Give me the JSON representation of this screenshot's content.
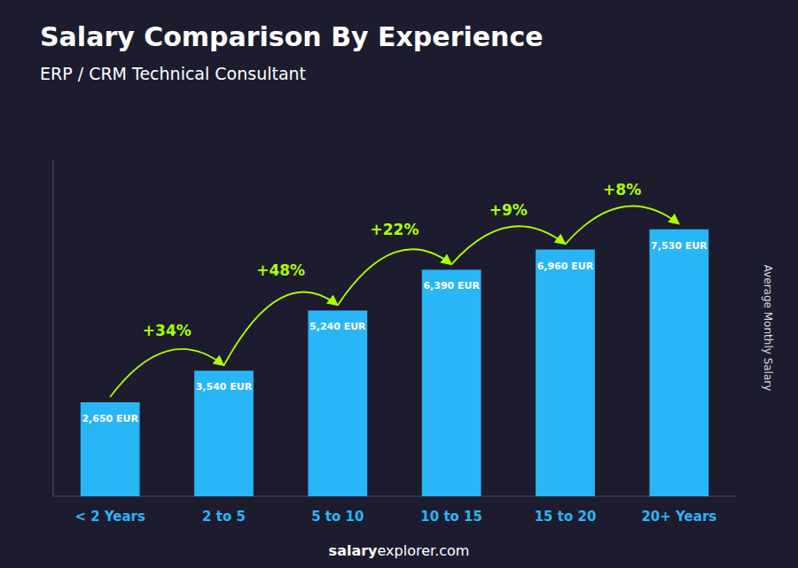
{
  "chart_data": {
    "type": "bar",
    "title": "Salary Comparison By Experience",
    "subtitle": "ERP / CRM Technical Consultant",
    "ylabel": "Average Monthly Salary",
    "footer": [
      "salary",
      "explorer.com"
    ],
    "categories": [
      "< 2 Years",
      "2 to 5",
      "5 to 10",
      "10 to 15",
      "15 to 20",
      "20+ Years"
    ],
    "values": [
      2650,
      3540,
      5240,
      6390,
      6960,
      7530
    ],
    "value_labels": [
      "2,650 EUR",
      "3,540 EUR",
      "5,240 EUR",
      "6,390 EUR",
      "6,960 EUR",
      "7,530 EUR"
    ],
    "data_labels": true,
    "annotations": [
      "+34%",
      "+48%",
      "+22%",
      "+9%",
      "+8%"
    ],
    "color": "#29b6f6",
    "ylim": [
      0,
      9500
    ],
    "tick_labels": "x",
    "grid": false
  }
}
